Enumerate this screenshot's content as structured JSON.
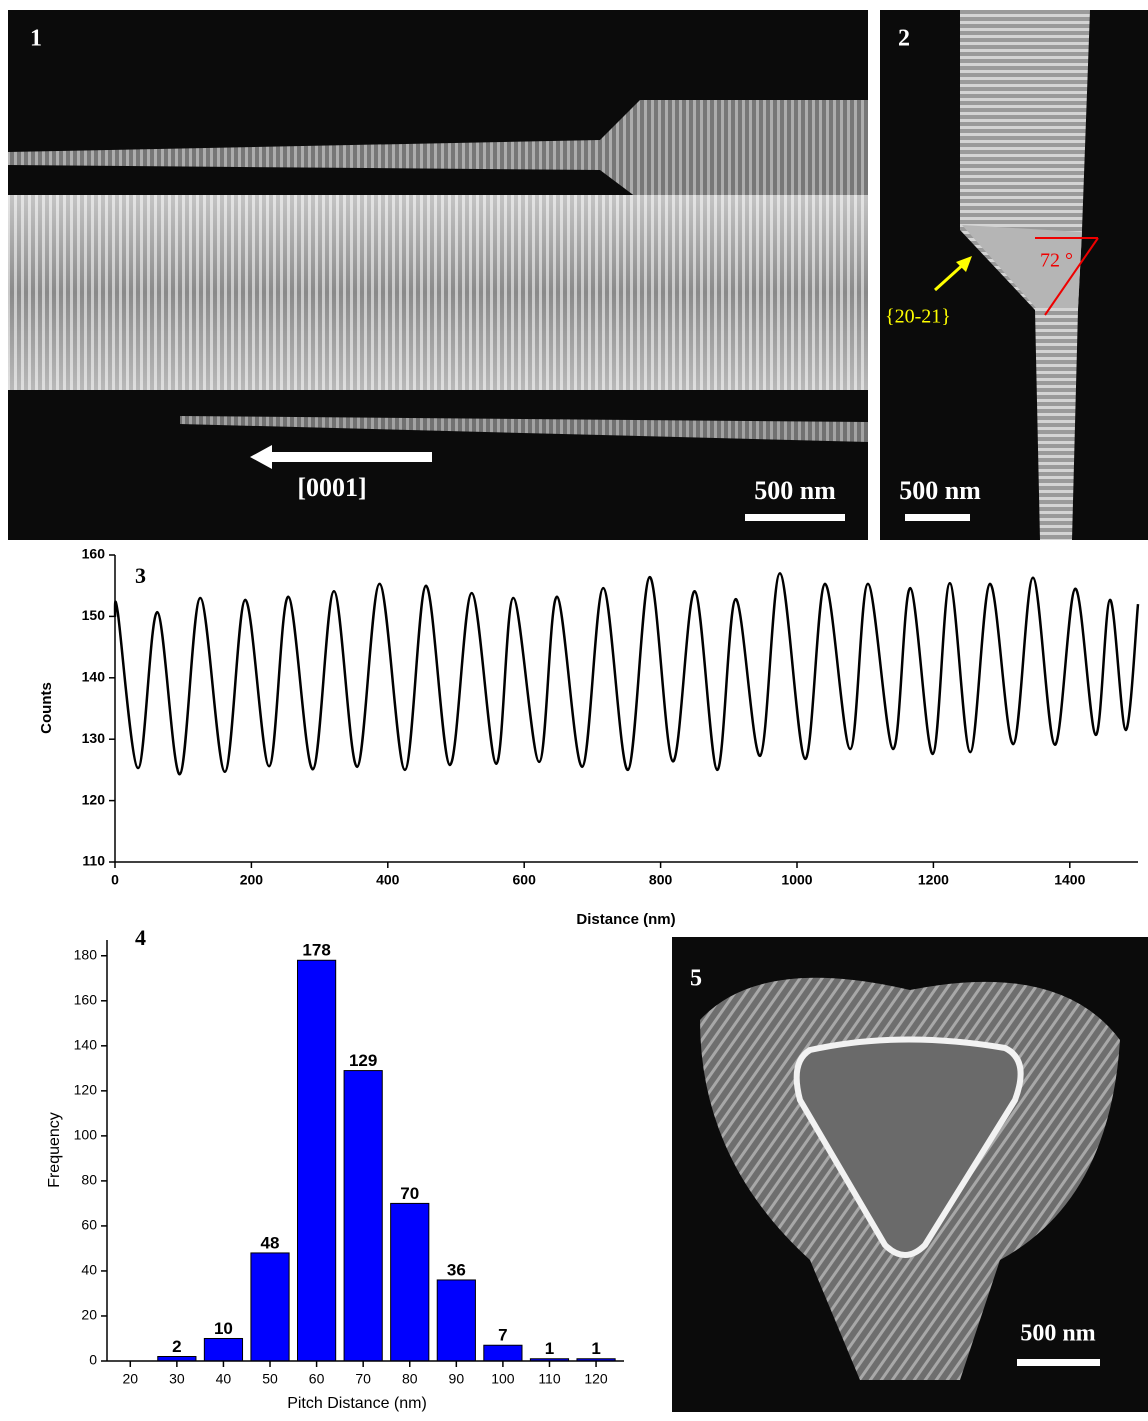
{
  "panels": {
    "panel1": {
      "label": "1",
      "direction": "[0001]",
      "scale_bar": "500 nm"
    },
    "panel2": {
      "label": "2",
      "facet": "{20-21}",
      "angle": "72 °",
      "scale_bar": "500 nm"
    },
    "panel5": {
      "label": "5",
      "scale_bar": "500 nm"
    }
  },
  "chart_data": [
    {
      "type": "line",
      "panel_label": "3",
      "x_label": "Distance (nm)",
      "y_label": "Counts",
      "color": "#000000",
      "x": [
        0,
        4,
        34,
        62,
        95,
        125,
        161,
        191,
        226,
        254,
        290,
        321,
        355,
        388,
        425,
        456,
        491,
        523,
        559,
        584,
        622,
        648,
        685,
        716,
        752,
        784,
        818,
        850,
        883,
        910,
        946,
        975,
        1012,
        1041,
        1078,
        1104,
        1141,
        1166,
        1199,
        1224,
        1254,
        1283,
        1317,
        1346,
        1378,
        1408,
        1438,
        1459,
        1482,
        1500
      ],
      "values": [
        150.0,
        150.7,
        125.3,
        150.7,
        124.3,
        153.0,
        124.7,
        152.7,
        125.6,
        153.2,
        125.1,
        154.1,
        125.5,
        155.3,
        125.0,
        155.0,
        125.8,
        153.8,
        126.0,
        153.0,
        126.3,
        153.2,
        125.5,
        154.6,
        125.0,
        156.4,
        126.4,
        154.1,
        125.0,
        152.8,
        127.3,
        157.0,
        126.8,
        155.3,
        128.4,
        155.3,
        128.4,
        154.6,
        127.6,
        155.4,
        127.9,
        155.3,
        129.2,
        156.3,
        129.1,
        154.5,
        130.7,
        152.7,
        131.5,
        152.0
      ],
      "xlim": [
        0,
        1500
      ],
      "xticks": [
        0,
        200,
        400,
        600,
        800,
        1000,
        1200,
        1400
      ],
      "ylim": [
        110,
        160
      ],
      "yticks": [
        110,
        120,
        130,
        140,
        150,
        160
      ]
    },
    {
      "type": "bar",
      "panel_label": "4",
      "x_label": "Pitch Distance (nm)",
      "y_label": "Frequency",
      "color": "#0000ff",
      "x": [
        20,
        30,
        40,
        50,
        60,
        70,
        80,
        90,
        100,
        110,
        120
      ],
      "values": [
        0,
        2,
        10,
        48,
        178,
        129,
        70,
        36,
        7,
        1,
        1
      ],
      "xlim": [
        15,
        126
      ],
      "xticks": [
        20,
        30,
        40,
        50,
        60,
        70,
        80,
        90,
        100,
        110,
        120
      ],
      "ylim": [
        0,
        187
      ],
      "yticks": [
        0,
        20,
        40,
        60,
        80,
        100,
        120,
        140,
        160,
        180
      ]
    }
  ]
}
